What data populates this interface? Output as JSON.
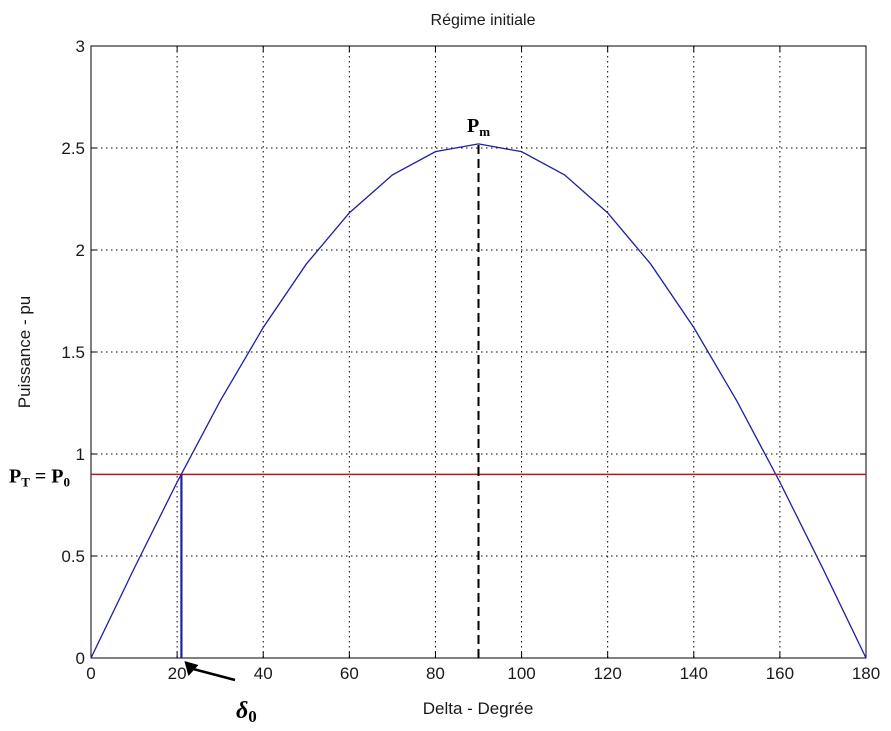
{
  "chart_data": {
    "type": "line",
    "title": "Régime initiale",
    "xlabel": "Delta  -   Degrée",
    "ylabel": "Puissance    -    pu",
    "xlim": [
      0,
      180
    ],
    "ylim": [
      0,
      3
    ],
    "xticks": [
      0,
      20,
      40,
      60,
      80,
      100,
      120,
      140,
      160,
      180
    ],
    "yticks": [
      0,
      0.5,
      1,
      1.5,
      2,
      2.5,
      3
    ],
    "ytick_labels": [
      "0",
      "0.5",
      "1",
      "1.5",
      "2",
      "2.5",
      "3"
    ],
    "grid": true,
    "series": [
      {
        "color": "#1f1fa6",
        "x": [
          0,
          10,
          20,
          30,
          40,
          50,
          60,
          70,
          80,
          90,
          100,
          110,
          120,
          130,
          140,
          150,
          160,
          170,
          180
        ],
        "values": [
          0,
          0.438,
          0.862,
          1.26,
          1.62,
          1.931,
          2.182,
          2.368,
          2.482,
          2.52,
          2.482,
          2.368,
          2.182,
          1.931,
          1.62,
          1.26,
          0.862,
          0.438,
          0
        ]
      }
    ],
    "reference_lines": [
      {
        "kind": "horizontal",
        "y": 0.9,
        "color": "#c0141c"
      },
      {
        "kind": "vertical",
        "x": 21,
        "y_to": 0.9,
        "color": "#1f1fa6"
      },
      {
        "kind": "vertical",
        "x": 90,
        "y_to": 2.52,
        "color": "#000000",
        "dashed": true
      }
    ],
    "annotations": {
      "pm": {
        "text": "P",
        "sub": "m",
        "x": 90,
        "y": 2.52
      },
      "pt": {
        "text": "P",
        "sub": "T",
        "eq": " = P",
        "sub2": "0",
        "y": 0.9
      },
      "delta0": {
        "text": "δ",
        "sub": "0",
        "x": 21
      }
    }
  }
}
